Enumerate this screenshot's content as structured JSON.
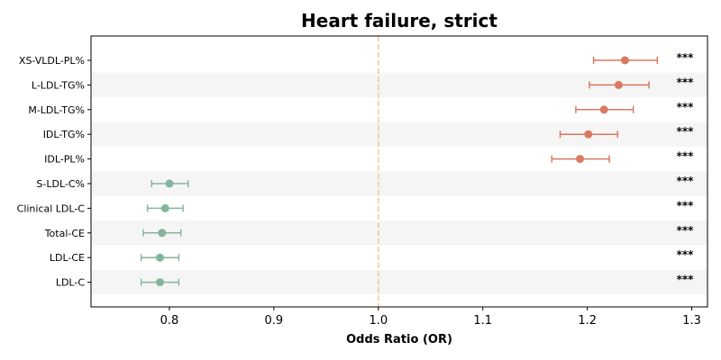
{
  "chart_data": {
    "type": "forest",
    "title": "Heart failure, strict",
    "xlabel": "Odds Ratio (OR)",
    "xlim": [
      0.725,
      1.315
    ],
    "xticks": [
      0.8,
      0.9,
      1.0,
      1.1,
      1.2,
      1.3
    ],
    "xtick_labels": [
      "0.8",
      "0.9",
      "1.0",
      "1.1",
      "1.2",
      "1.3"
    ],
    "reference_line": 1.0,
    "colors": {
      "positive": "#d97a60",
      "negative": "#84b59b",
      "reference": "#f5c98a",
      "band": "#f5f5f5"
    },
    "rows": [
      {
        "label": "XS-VLDL-PL%",
        "or": 1.236,
        "lo": 1.206,
        "hi": 1.267,
        "sig": "***",
        "group": "positive"
      },
      {
        "label": "L-LDL-TG%",
        "or": 1.23,
        "lo": 1.202,
        "hi": 1.259,
        "sig": "***",
        "group": "positive"
      },
      {
        "label": "M-LDL-TG%",
        "or": 1.216,
        "lo": 1.189,
        "hi": 1.244,
        "sig": "***",
        "group": "positive"
      },
      {
        "label": "IDL-TG%",
        "or": 1.201,
        "lo": 1.174,
        "hi": 1.229,
        "sig": "***",
        "group": "positive"
      },
      {
        "label": "IDL-PL%",
        "or": 1.193,
        "lo": 1.166,
        "hi": 1.221,
        "sig": "***",
        "group": "positive"
      },
      {
        "label": "S-LDL-C%",
        "or": 0.8,
        "lo": 0.783,
        "hi": 0.818,
        "sig": "***",
        "group": "negative"
      },
      {
        "label": "Clinical LDL-C",
        "or": 0.796,
        "lo": 0.779,
        "hi": 0.813,
        "sig": "***",
        "group": "negative"
      },
      {
        "label": "Total-CE",
        "or": 0.793,
        "lo": 0.775,
        "hi": 0.811,
        "sig": "***",
        "group": "negative"
      },
      {
        "label": "LDL-CE",
        "or": 0.791,
        "lo": 0.773,
        "hi": 0.809,
        "sig": "***",
        "group": "negative"
      },
      {
        "label": "LDL-C",
        "or": 0.791,
        "lo": 0.773,
        "hi": 0.809,
        "sig": "***",
        "group": "negative"
      }
    ]
  }
}
